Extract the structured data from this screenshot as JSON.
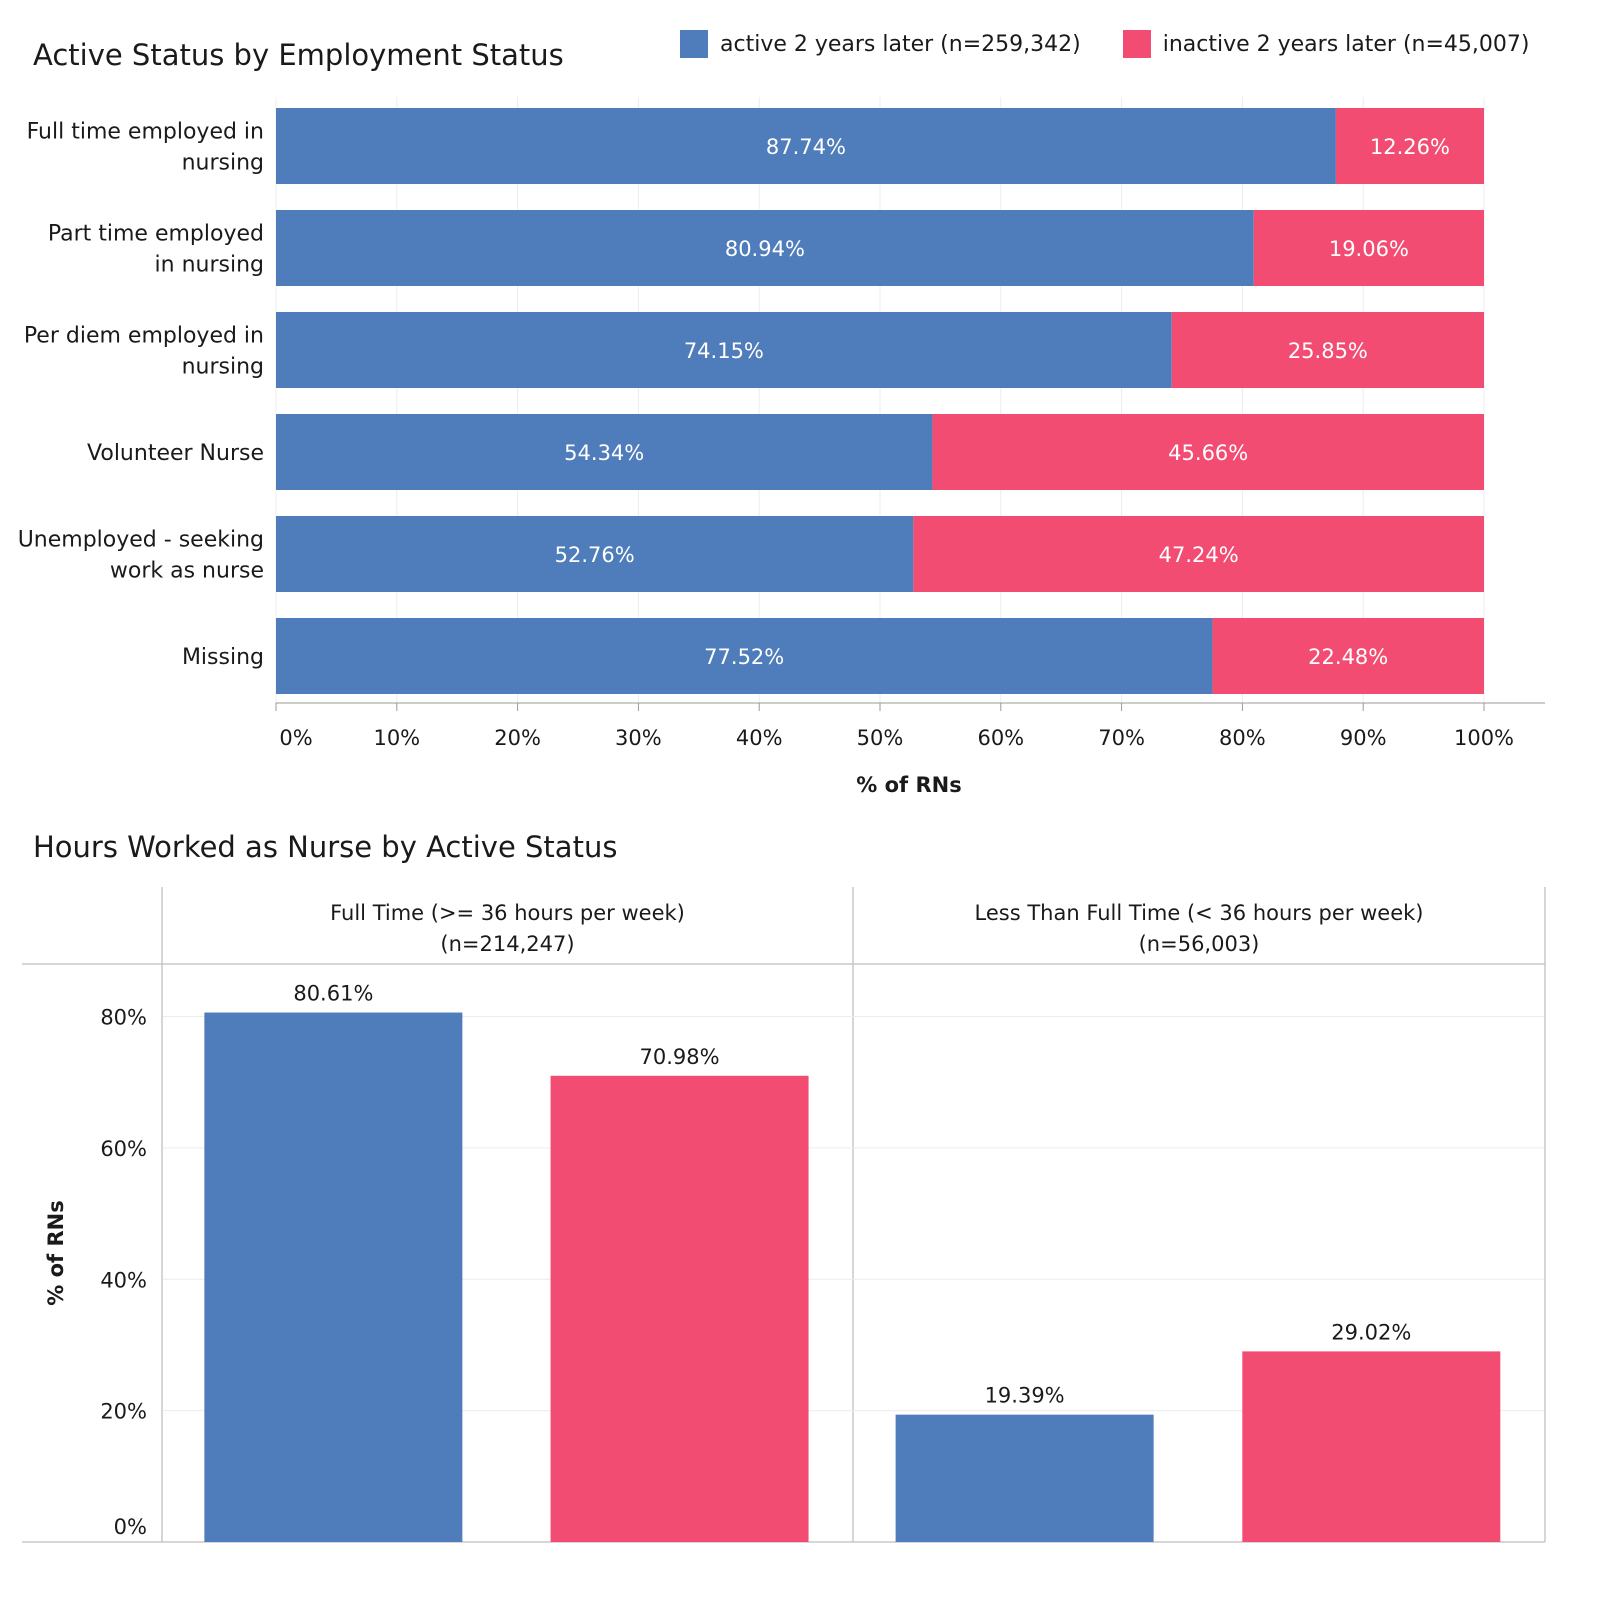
{
  "colors": {
    "active": "#4F7CBA",
    "inactive": "#F24C72",
    "grid": "#ececec",
    "frame": "#c8c8c8"
  },
  "legend": [
    {
      "label": "active 2 years later (n=259,342)",
      "color": "#4F7CBA"
    },
    {
      "label": "inactive 2 years later (n=45,007)",
      "color": "#F24C72"
    }
  ],
  "chart_data": [
    {
      "type": "bar",
      "orientation": "horizontal",
      "stacked": true,
      "title": "Active Status by Employment Status",
      "categories": [
        [
          "Full time employed in",
          "nursing"
        ],
        [
          "Part time employed",
          "in nursing"
        ],
        [
          "Per diem employed in",
          "nursing"
        ],
        [
          "Volunteer Nurse"
        ],
        [
          "Unemployed - seeking",
          "work as nurse"
        ],
        [
          "Missing"
        ]
      ],
      "series": [
        {
          "name": "active 2 years later (n=259,342)",
          "values": [
            87.74,
            80.94,
            74.15,
            54.34,
            52.76,
            77.52
          ],
          "labels": [
            "87.74%",
            "80.94%",
            "74.15%",
            "54.34%",
            "52.76%",
            "77.52%"
          ]
        },
        {
          "name": "inactive 2 years later (n=45,007)",
          "values": [
            12.26,
            19.06,
            25.85,
            45.66,
            47.24,
            22.48
          ],
          "labels": [
            "12.26%",
            "19.06%",
            "25.85%",
            "45.66%",
            "47.24%",
            "22.48%"
          ]
        }
      ],
      "xlabel": "% of RNs",
      "xlim": [
        0,
        100
      ],
      "xticks": [
        "0%",
        "10%",
        "20%",
        "30%",
        "40%",
        "50%",
        "60%",
        "70%",
        "80%",
        "90%",
        "100%"
      ],
      "grid": true
    },
    {
      "type": "bar",
      "orientation": "vertical",
      "title": "Hours Worked as Nurse by Active Status",
      "panels": [
        {
          "header": [
            "Full Time (>= 36 hours per week)",
            "(n=214,247)"
          ],
          "values": [
            80.61,
            70.98
          ],
          "labels": [
            "80.61%",
            "70.98%"
          ]
        },
        {
          "header": [
            "Less Than Full Time (< 36 hours per week)",
            "(n=56,003)"
          ],
          "values": [
            19.39,
            29.02
          ],
          "labels": [
            "19.39%",
            "29.02%"
          ]
        }
      ],
      "series_names": [
        "active 2 years later (n=259,342)",
        "inactive 2 years later (n=45,007)"
      ],
      "ylabel": "% of RNs",
      "ylim": [
        0,
        88
      ],
      "yticks": [
        0,
        20,
        40,
        60,
        80
      ],
      "ytick_labels": [
        "0%",
        "20%",
        "40%",
        "60%",
        "80%"
      ],
      "grid": true
    }
  ]
}
